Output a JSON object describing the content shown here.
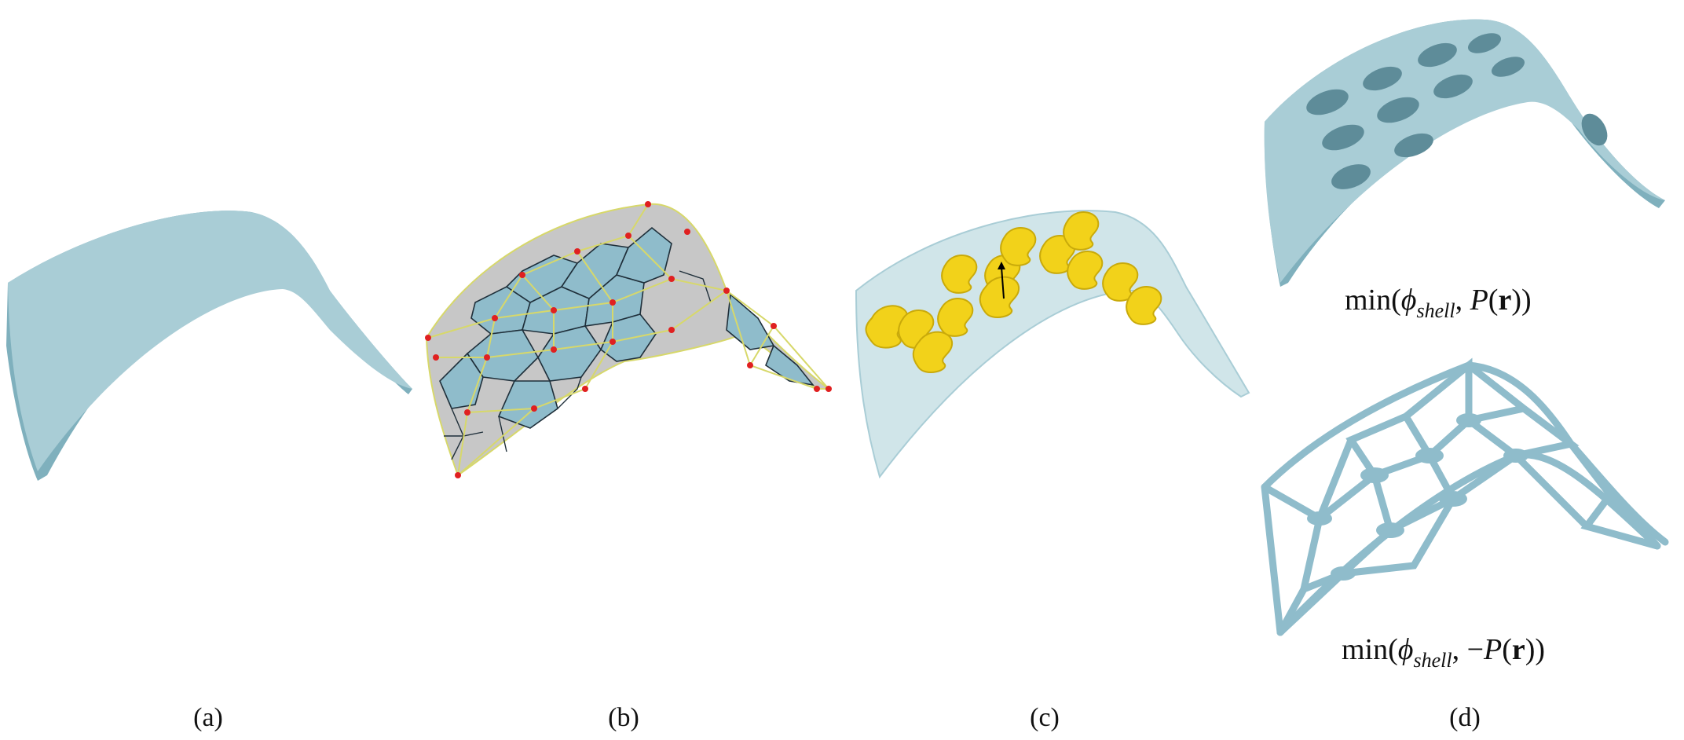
{
  "captions": {
    "a": "(a)",
    "b": "(b)",
    "c": "(c)",
    "d": "(d)"
  },
  "formulas": {
    "top": {
      "prefix": "min(",
      "phi": "ϕ",
      "sub": "shell",
      "sep": ", ",
      "neg": "",
      "P": "P",
      "open": "(",
      "r": "r",
      "close": "))"
    },
    "bottom": {
      "prefix": "min(",
      "phi": "ϕ",
      "sub": "shell",
      "sep": ", ",
      "neg": "−",
      "P": "P",
      "open": "(",
      "r": "r",
      "close": "))"
    }
  },
  "colors": {
    "shell": "#a9cdd6",
    "shell_dark": "#7fb0bd",
    "shell_light": "#c4dee4",
    "mesh_gray": "#c7c7c7",
    "voronoi_edge": "#1f2f3a",
    "delaunay_edge": "#d7d86a",
    "vertex": "#e02020",
    "glyph": "#f2d21a",
    "glyph_dark": "#c9aa0a"
  },
  "icons": {
    "arrow": "arrow-up-icon"
  }
}
